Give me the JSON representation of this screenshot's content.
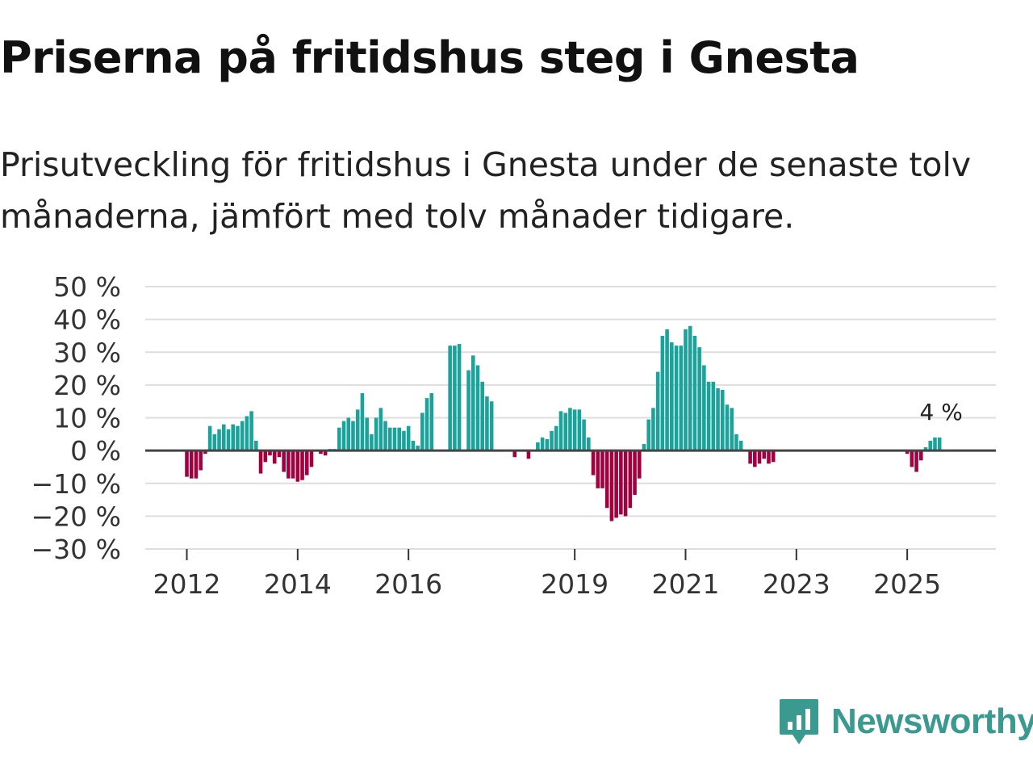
{
  "title": "Priserna på fritidshus steg i Gnesta",
  "subtitle": "Prisutveckling för fritidshus i Gnesta under de senaste tolv månaderna, jämfört med tolv månader tidigare.",
  "brand": {
    "name": "Newsworthy",
    "icon": "newsworthy-logo-icon",
    "color": "#3a9a8f"
  },
  "colors": {
    "positive": "#1aa39a",
    "negative": "#a3003f",
    "grid": "#dedede",
    "zero": "#444444"
  },
  "chart_data": {
    "type": "bar",
    "title": "Priserna på fritidshus steg i Gnesta",
    "xlabel": "",
    "ylabel": "",
    "ylim": [
      -30,
      50
    ],
    "yticks": [
      50,
      40,
      30,
      20,
      10,
      0,
      -10,
      -20,
      -30
    ],
    "ytick_labels": [
      "50 %",
      "40 %",
      "30 %",
      "20 %",
      "10 %",
      "0 %",
      "−10 %",
      "−20 %",
      "−30 %"
    ],
    "x_range": [
      2011.25,
      2026.6
    ],
    "xticks": [
      {
        "value": 2012,
        "label": "2012"
      },
      {
        "value": 2014,
        "label": "2014"
      },
      {
        "value": 2016,
        "label": "2016"
      },
      {
        "value": 2019,
        "label": "2019"
      },
      {
        "value": 2021,
        "label": "2021"
      },
      {
        "value": 2023,
        "label": "2023"
      },
      {
        "value": 2025,
        "label": "2025"
      }
    ],
    "series": [
      {
        "name": "Prisutveckling",
        "start": 2012.0,
        "step_months": 1,
        "values": [
          -8,
          -8.5,
          -8.5,
          -6,
          -1,
          7.5,
          5,
          6.5,
          8,
          6.5,
          8,
          7.5,
          9,
          10.5,
          12,
          3,
          -7,
          -3.5,
          -1.5,
          -4,
          -2,
          -6.5,
          -8.5,
          -8.5,
          -9.5,
          -9,
          -7.5,
          -5,
          0,
          -1,
          -1.5,
          0.5,
          0.5,
          7,
          9,
          10,
          9,
          12.5,
          17.5,
          10,
          5,
          10,
          13,
          9,
          7,
          7,
          7,
          6,
          7.5,
          3,
          1.5,
          11.5,
          16,
          17.5,
          null,
          null,
          null,
          32,
          32,
          32.5,
          null,
          24.5,
          29,
          26,
          21,
          16.5,
          15,
          null,
          null,
          null,
          null,
          -2,
          null,
          null,
          -2.5,
          null,
          2.5,
          4,
          3.5,
          6,
          7.5,
          12,
          11.5,
          13,
          12.5,
          12.5,
          9.5,
          4,
          -7.5,
          -11.5,
          -11.5,
          -17.5,
          -21.5,
          -20.5,
          -19.5,
          -20,
          -17.5,
          -13.5,
          -8.5,
          2,
          9.5,
          13,
          24,
          35,
          37,
          33,
          32,
          32,
          37,
          38,
          35,
          31.5,
          26,
          21,
          21,
          19,
          18.5,
          14,
          13,
          5,
          3,
          null,
          -4,
          -5,
          -4,
          -2.5,
          -4,
          -3.5,
          null,
          null,
          null,
          null,
          null,
          null,
          null,
          null,
          null,
          null,
          null,
          null,
          null,
          null,
          null,
          null,
          null,
          null,
          null,
          null,
          null,
          null,
          null,
          null,
          null,
          null,
          null,
          null,
          -1,
          -5,
          -6.5,
          -3,
          1,
          3,
          4,
          4
        ]
      }
    ],
    "annotations": [
      {
        "text": "4 %",
        "series_index": 0,
        "at": "last"
      }
    ]
  }
}
